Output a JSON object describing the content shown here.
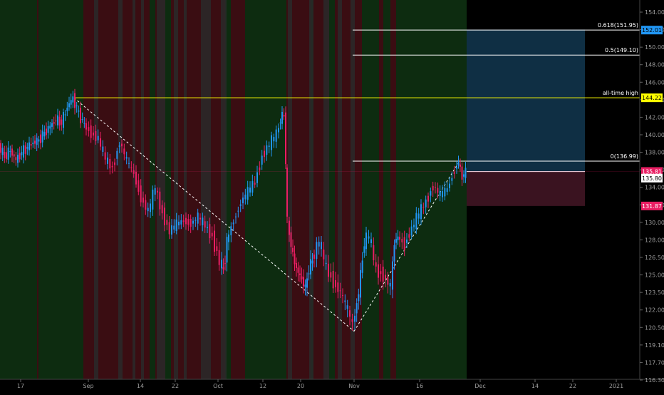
{
  "chart_data": {
    "type": "candlestick",
    "title": "",
    "xlabel": "",
    "ylabel": "",
    "ylim": [
      116.3,
      155.5
    ],
    "x_ticks": [
      "17",
      "Sep",
      "14",
      "22",
      "Oct",
      "12",
      "20",
      "Nov",
      "16",
      "Dec",
      "14",
      "22",
      "2021"
    ],
    "y_ticks": [
      "154.00",
      "152.00",
      "150.00",
      "148.00",
      "146.00",
      "144.00",
      "142.00",
      "140.00",
      "138.00",
      "136.00",
      "134.00",
      "132.00",
      "130.00",
      "128.00",
      "126.50",
      "125.00",
      "123.50",
      "122.00",
      "120.50",
      "119.10",
      "117.70",
      "116.30"
    ],
    "series": [
      {
        "values": [
          [
            0,
            138.7
          ],
          [
            8,
            137.5
          ],
          [
            16,
            138.2
          ],
          [
            24,
            137.1
          ],
          [
            32,
            138.0
          ],
          [
            40,
            138.6
          ],
          [
            48,
            139.1
          ],
          [
            56,
            139.4
          ],
          [
            64,
            140.2
          ],
          [
            72,
            141.0
          ],
          [
            80,
            141.7
          ],
          [
            88,
            141.4
          ],
          [
            96,
            143.2
          ],
          [
            104,
            144.2
          ],
          [
            112,
            142.4
          ],
          [
            120,
            141.1
          ],
          [
            130,
            140.2
          ],
          [
            140,
            139.5
          ],
          [
            150,
            137.2
          ],
          [
            160,
            136.2
          ],
          [
            170,
            139.2
          ],
          [
            180,
            137.0
          ],
          [
            190,
            135.5
          ],
          [
            200,
            132.8
          ],
          [
            210,
            131.2
          ],
          [
            220,
            134.0
          ],
          [
            230,
            131.0
          ],
          [
            240,
            129.0
          ],
          [
            250,
            129.8
          ],
          [
            260,
            130.2
          ],
          [
            270,
            129.9
          ],
          [
            280,
            130.6
          ],
          [
            290,
            129.6
          ],
          [
            300,
            128.4
          ],
          [
            310,
            126.1
          ],
          [
            315,
            125.4
          ],
          [
            320,
            127.8
          ],
          [
            330,
            130.3
          ],
          [
            340,
            132.3
          ],
          [
            350,
            133.5
          ],
          [
            360,
            134.6
          ],
          [
            370,
            137.6
          ],
          [
            380,
            138.9
          ],
          [
            390,
            140.1
          ],
          [
            395,
            141.8
          ],
          [
            400,
            142.3
          ],
          [
            402,
            136.9
          ],
          [
            405,
            130.0
          ],
          [
            410,
            127.5
          ],
          [
            415,
            126.0
          ],
          [
            420,
            125.2
          ],
          [
            425,
            124.6
          ],
          [
            430,
            123.9
          ],
          [
            435,
            125.5
          ],
          [
            440,
            126.3
          ],
          [
            450,
            127.9
          ],
          [
            460,
            125.6
          ],
          [
            470,
            124.4
          ],
          [
            480,
            123.5
          ],
          [
            490,
            122.0
          ],
          [
            497,
            120.8
          ],
          [
            505,
            123.5
          ],
          [
            513,
            127.9
          ],
          [
            520,
            128.4
          ],
          [
            530,
            125.4
          ],
          [
            540,
            125.0
          ],
          [
            550,
            124.0
          ],
          [
            555,
            127.8
          ],
          [
            560,
            128.3
          ],
          [
            570,
            127.6
          ],
          [
            580,
            129.3
          ],
          [
            590,
            131.0
          ],
          [
            600,
            132.4
          ],
          [
            610,
            134.2
          ],
          [
            620,
            133.1
          ],
          [
            630,
            133.8
          ],
          [
            640,
            136.0
          ],
          [
            645,
            136.9
          ],
          [
            650,
            135.2
          ],
          [
            655,
            135.8
          ]
        ]
      }
    ],
    "horizontal_levels": [
      {
        "label": "0.618(151.95)",
        "value": 151.95,
        "badge": "152.01",
        "color": "#ffffff",
        "badge_color": "#2196f3"
      },
      {
        "label": "0.5(149.10)",
        "value": 149.1,
        "color": "#ffffff"
      },
      {
        "label": "all-time high",
        "value": 144.22,
        "badge": "144.22",
        "color": "#ffff00",
        "badge_color": "#ffff00"
      },
      {
        "label": "0(136.99)",
        "value": 136.99,
        "color": "#ffffff"
      }
    ],
    "price_badges": [
      {
        "text": "135.81",
        "value": 135.81,
        "bg": "#e91e63",
        "fg": "#ffffff"
      },
      {
        "text": "135.80",
        "value": 135.8,
        "bg": "#ffffff",
        "fg": "#000000"
      },
      {
        "text": "131.87",
        "value": 131.87,
        "bg": "#e91e63",
        "fg": "#ffffff"
      }
    ],
    "position_tool": {
      "entry": 135.8,
      "target": 152.01,
      "stop": 131.87
    },
    "colors": {
      "background": "#000000",
      "bull": "#2196f3",
      "bear": "#e91e63",
      "fill_up": "#0d2c10",
      "fill_down": "#3a0d12",
      "fill_neutral": "#2a2a2a",
      "target_zone": "#0f2f44",
      "stop_zone": "#3a1320"
    },
    "grid": false,
    "legend": "none"
  }
}
